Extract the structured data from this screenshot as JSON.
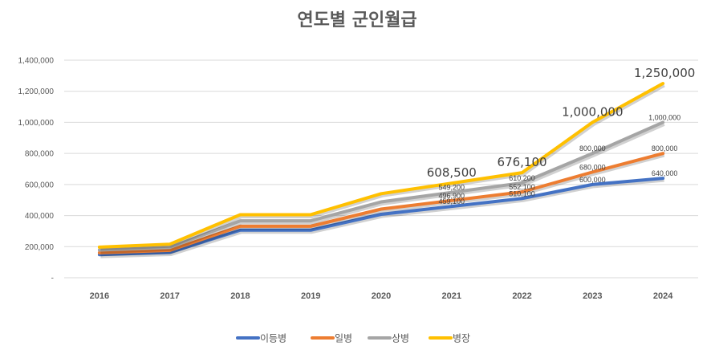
{
  "chart_data": {
    "type": "line",
    "title": "연도별 군인월급",
    "xlabel": "",
    "ylabel": "",
    "ylim": [
      0,
      1400000
    ],
    "yticks": [
      "-",
      "200,000",
      "400,000",
      "600,000",
      "800,000",
      "1,000,000",
      "1,200,000",
      "1,400,000"
    ],
    "categories": [
      "2016",
      "2017",
      "2018",
      "2019",
      "2020",
      "2021",
      "2022",
      "2023",
      "2024"
    ],
    "grid": true,
    "legend": "bottom",
    "series": [
      {
        "name": "이등병",
        "color": "#4472C4",
        "values": [
          148800,
          163000,
          306100,
          306100,
          408100,
          459100,
          510100,
          600000,
          640000
        ],
        "labels": [
          null,
          null,
          null,
          null,
          null,
          "459,100",
          "510,100",
          "600,000",
          "640,000"
        ]
      },
      {
        "name": "일병",
        "color": "#ED7D31",
        "values": [
          161000,
          176400,
          331300,
          331300,
          441700,
          496900,
          552100,
          680000,
          800000
        ],
        "labels": [
          null,
          null,
          null,
          null,
          null,
          "496,900",
          "552,100",
          "680,000",
          "800,000"
        ]
      },
      {
        "name": "상병",
        "color": "#A5A5A5",
        "values": [
          178000,
          195000,
          366200,
          366200,
          488200,
          549200,
          610200,
          800000,
          1000000
        ],
        "labels": [
          null,
          null,
          null,
          null,
          null,
          "549,200",
          "610,200",
          "800,000",
          "1,000,000"
        ]
      },
      {
        "name": "병장",
        "color": "#FFC000",
        "values": [
          197000,
          216000,
          405700,
          405700,
          540900,
          608500,
          676100,
          1000000,
          1250000
        ],
        "labels": [
          null,
          null,
          null,
          null,
          null,
          "608,500",
          "676,100",
          "1,000,000",
          "1,250,000"
        ]
      }
    ]
  }
}
